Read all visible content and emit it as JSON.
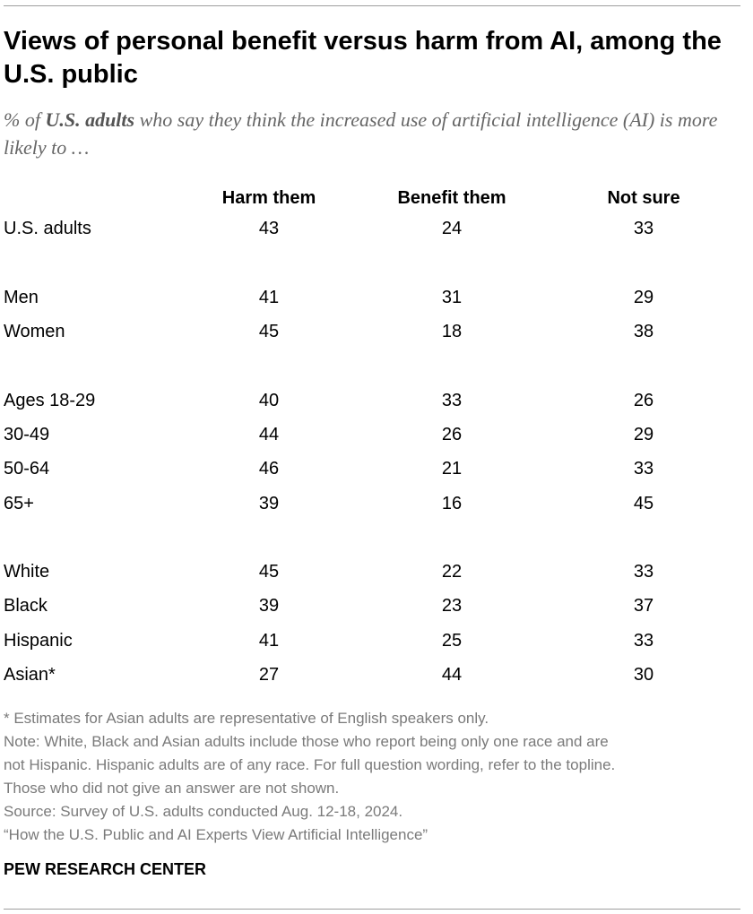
{
  "title": "Views of personal benefit versus harm from AI, among the U.S. public",
  "subtitle": {
    "prefix": "% of ",
    "bold": "U.S. adults",
    "suffix": " who say they think the increased use of artificial intelligence (AI) is more likely to …"
  },
  "chart_data": {
    "type": "table",
    "title": "Views of personal benefit versus harm from AI, among the U.S. public",
    "columns": [
      "Harm them",
      "Benefit them",
      "Not sure"
    ],
    "rows": [
      {
        "label": "U.S. adults",
        "values": [
          43,
          24,
          33
        ]
      },
      {
        "label": "Men",
        "values": [
          41,
          31,
          29
        ]
      },
      {
        "label": "Women",
        "values": [
          45,
          18,
          38
        ]
      },
      {
        "label": "Ages 18-29",
        "values": [
          40,
          33,
          26
        ]
      },
      {
        "label": "30-49",
        "values": [
          44,
          26,
          29
        ]
      },
      {
        "label": "50-64",
        "values": [
          46,
          21,
          33
        ]
      },
      {
        "label": "65+",
        "values": [
          39,
          16,
          45
        ]
      },
      {
        "label": "White",
        "values": [
          45,
          22,
          33
        ]
      },
      {
        "label": "Black",
        "values": [
          39,
          23,
          37
        ]
      },
      {
        "label": "Hispanic",
        "values": [
          41,
          25,
          33
        ]
      },
      {
        "label": "Asian*",
        "values": [
          27,
          44,
          30
        ]
      }
    ]
  },
  "notes": [
    "* Estimates for Asian adults are representative of English speakers only.",
    "Note: White, Black and Asian adults include those who report being only one race and are",
    "not Hispanic. Hispanic adults are of any race. For full question wording, refer to the topline.",
    "Those who did not give an answer are not shown.",
    "Source: Survey of U.S. adults conducted Aug. 12-18, 2024.",
    "“How the U.S. Public and AI Experts View Artificial Intelligence”"
  ],
  "brand": "PEW RESEARCH CENTER"
}
